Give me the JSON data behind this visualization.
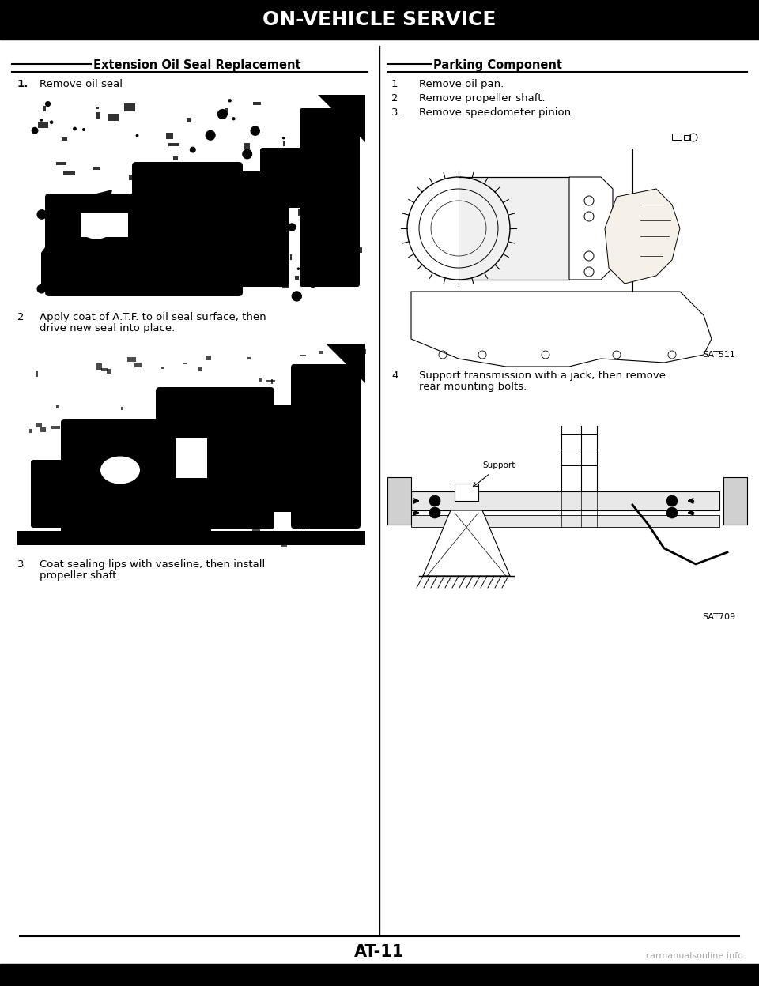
{
  "page_bg": "#ffffff",
  "header_bg": "#000000",
  "header_text": "ON-VEHICLE SERVICE",
  "header_text_color": "#ffffff",
  "header_fontsize": 18,
  "footer_text": "AT-11",
  "footer_fontsize": 15,
  "left_section_title": "__ Extension Oil Seal Replacement __",
  "right_section_title": "_________ Parking Component ____",
  "section_title_fontsize": 10.5,
  "step_fontsize": 9.5,
  "img_caption1": "SAT511",
  "img_caption2": "SAT709",
  "caption_fontsize": 8,
  "watermark_text": "carmanualsonline.info",
  "watermark_color": "#aaaaaa",
  "watermark_fontsize": 8
}
